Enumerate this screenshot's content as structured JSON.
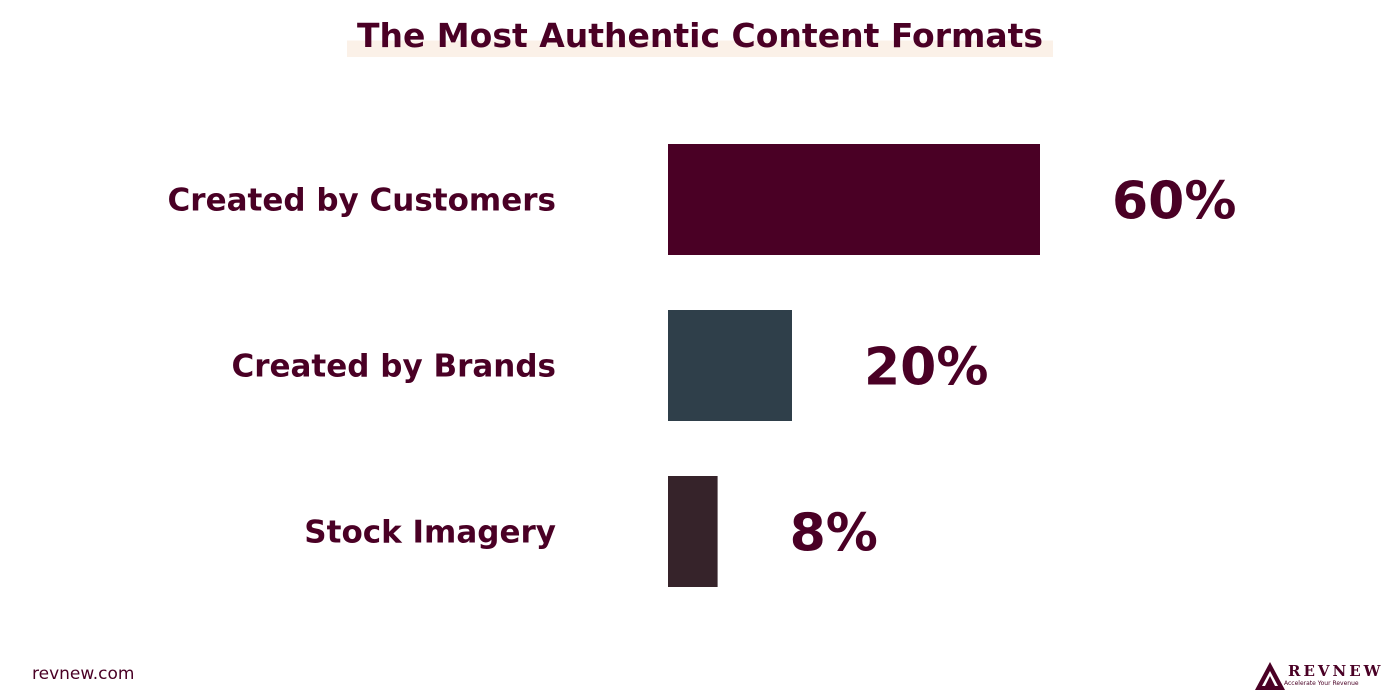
{
  "chart_data": {
    "type": "bar",
    "orientation": "horizontal",
    "title": "The Most Authentic Content Formats",
    "categories": [
      "Created by Customers",
      "Created by Brands",
      "Stock Imagery"
    ],
    "values": [
      60,
      20,
      8
    ],
    "value_labels": [
      "60%",
      "20%",
      "8%"
    ],
    "colors": [
      "#4a0025",
      "#2f3f4a",
      "#36232a"
    ],
    "xlim": [
      0,
      60
    ],
    "grid": false,
    "legend": "none"
  },
  "footer": {
    "url": "revnew.com"
  },
  "logo": {
    "name": "REVNEW",
    "tagline": "Accelerate Your Revenue"
  }
}
